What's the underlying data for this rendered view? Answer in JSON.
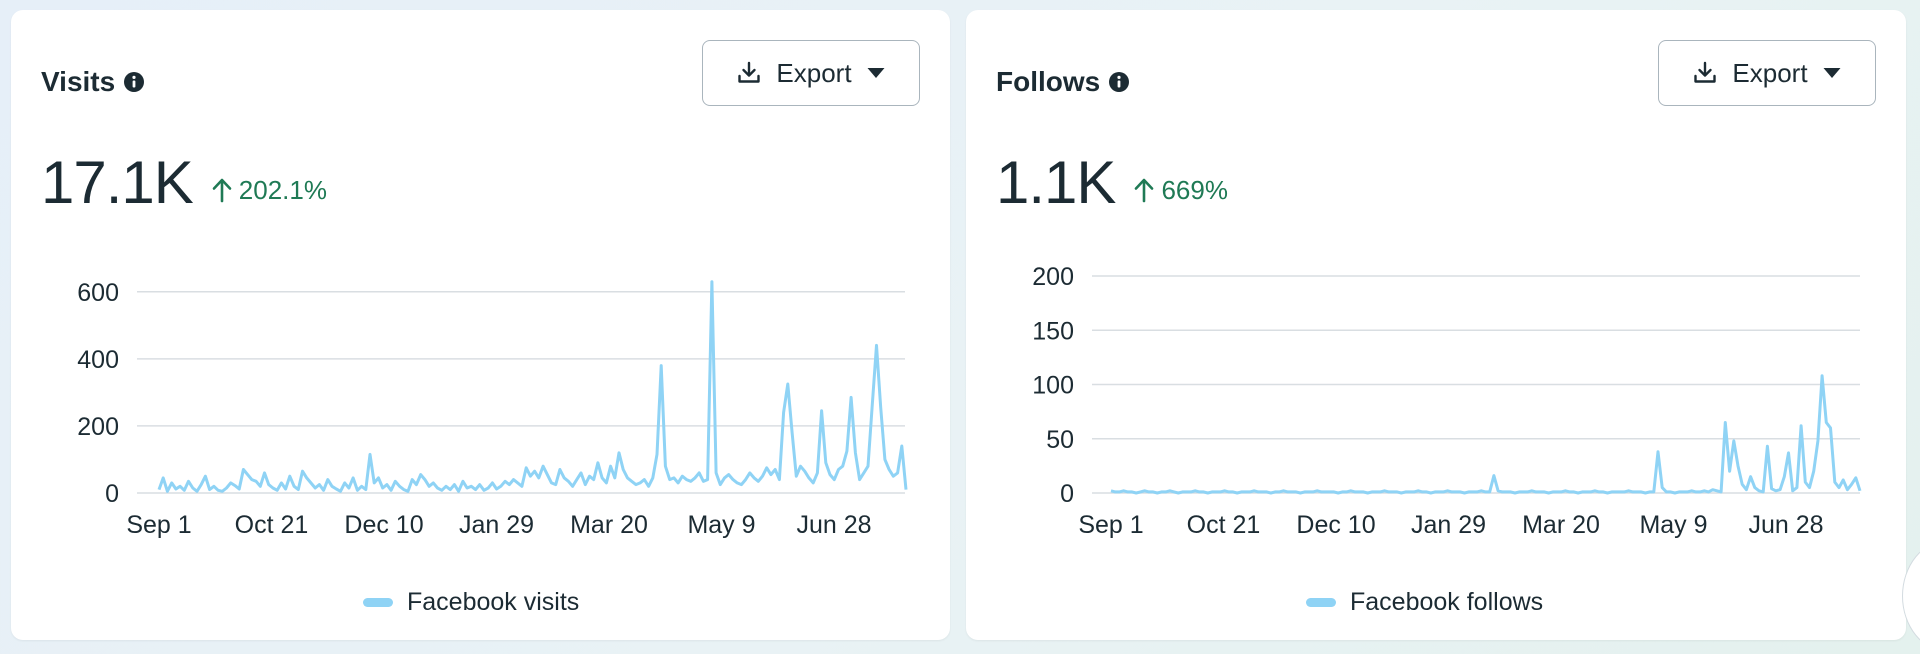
{
  "colors": {
    "series": "#8fd3f5",
    "positive": "#1f7a55",
    "grid": "#d9dee2",
    "text": "#1c2b33"
  },
  "cards": [
    {
      "title": "Visits",
      "export_label": "Export",
      "metric": "17.1K",
      "change": "202.1%"
    },
    {
      "title": "Follows",
      "export_label": "Export",
      "metric": "1.1K",
      "change": "669%"
    }
  ],
  "chart_data": [
    {
      "type": "line",
      "x_tick_labels": [
        "Sep 1",
        "Oct 21",
        "Dec 10",
        "Jan 29",
        "Mar 20",
        "May 9",
        "Jun 28"
      ],
      "y_ticks": [
        0,
        200,
        400,
        600
      ],
      "ylim": [
        0,
        650
      ],
      "grid": true,
      "legend_position": "bottom",
      "series": [
        {
          "name": "Facebook visits",
          "x_start": "Sep 1",
          "x_end": "Jul 22",
          "values": [
            10,
            45,
            5,
            30,
            12,
            20,
            8,
            35,
            15,
            5,
            25,
            50,
            10,
            20,
            8,
            5,
            15,
            30,
            22,
            12,
            70,
            55,
            40,
            35,
            20,
            60,
            25,
            15,
            8,
            30,
            12,
            50,
            20,
            10,
            65,
            45,
            30,
            15,
            25,
            8,
            40,
            20,
            12,
            5,
            30,
            15,
            45,
            8,
            20,
            10,
            115,
            30,
            45,
            15,
            25,
            8,
            35,
            20,
            10,
            5,
            40,
            25,
            55,
            40,
            20,
            30,
            15,
            8,
            20,
            10,
            25,
            5,
            35,
            15,
            20,
            10,
            25,
            8,
            15,
            30,
            12,
            20,
            35,
            25,
            40,
            30,
            20,
            75,
            50,
            65,
            45,
            80,
            55,
            30,
            25,
            70,
            45,
            35,
            20,
            40,
            60,
            25,
            50,
            40,
            90,
            45,
            30,
            80,
            45,
            120,
            70,
            45,
            35,
            25,
            30,
            40,
            20,
            45,
            115,
            380,
            80,
            40,
            45,
            30,
            50,
            40,
            35,
            45,
            60,
            35,
            40,
            630,
            60,
            25,
            45,
            55,
            40,
            30,
            25,
            40,
            60,
            45,
            35,
            50,
            75,
            55,
            70,
            40,
            240,
            325,
            180,
            50,
            80,
            65,
            45,
            30,
            60,
            245,
            90,
            55,
            40,
            70,
            80,
            125,
            285,
            120,
            40,
            60,
            80,
            260,
            440,
            255,
            100,
            70,
            50,
            60,
            140,
            10
          ]
        }
      ]
    },
    {
      "type": "line",
      "x_tick_labels": [
        "Sep 1",
        "Oct 21",
        "Dec 10",
        "Jan 29",
        "Mar 20",
        "May 9",
        "Jun 28"
      ],
      "y_ticks": [
        0,
        50,
        100,
        150,
        200
      ],
      "ylim": [
        0,
        200
      ],
      "grid": true,
      "legend_position": "bottom",
      "series": [
        {
          "name": "Facebook follows",
          "x_start": "Sep 1",
          "x_end": "Jul 22",
          "values": [
            2,
            1,
            1,
            2,
            1,
            1,
            0,
            1,
            2,
            1,
            1,
            0,
            1,
            1,
            2,
            1,
            0,
            1,
            1,
            1,
            2,
            1,
            1,
            0,
            1,
            1,
            1,
            2,
            1,
            1,
            0,
            1,
            1,
            1,
            2,
            1,
            1,
            1,
            0,
            1,
            1,
            2,
            1,
            1,
            1,
            0,
            1,
            1,
            1,
            2,
            1,
            1,
            1,
            1,
            0,
            1,
            1,
            2,
            1,
            1,
            1,
            0,
            1,
            1,
            1,
            2,
            1,
            1,
            1,
            0,
            1,
            1,
            1,
            2,
            1,
            1,
            0,
            1,
            1,
            1,
            2,
            1,
            1,
            1,
            0,
            1,
            1,
            1,
            2,
            1,
            1,
            16,
            2,
            1,
            1,
            1,
            0,
            1,
            1,
            1,
            2,
            1,
            1,
            1,
            0,
            1,
            1,
            1,
            2,
            1,
            1,
            0,
            1,
            1,
            1,
            2,
            1,
            1,
            0,
            1,
            1,
            1,
            1,
            2,
            1,
            1,
            1,
            0,
            1,
            1,
            38,
            5,
            1,
            1,
            0,
            1,
            1,
            1,
            2,
            1,
            1,
            2,
            1,
            3,
            2,
            1,
            65,
            20,
            48,
            25,
            8,
            3,
            15,
            5,
            2,
            1,
            43,
            4,
            2,
            3,
            15,
            37,
            2,
            5,
            62,
            10,
            5,
            20,
            48,
            108,
            65,
            60,
            10,
            5,
            12,
            3,
            8,
            14,
            2
          ]
        }
      ]
    }
  ]
}
